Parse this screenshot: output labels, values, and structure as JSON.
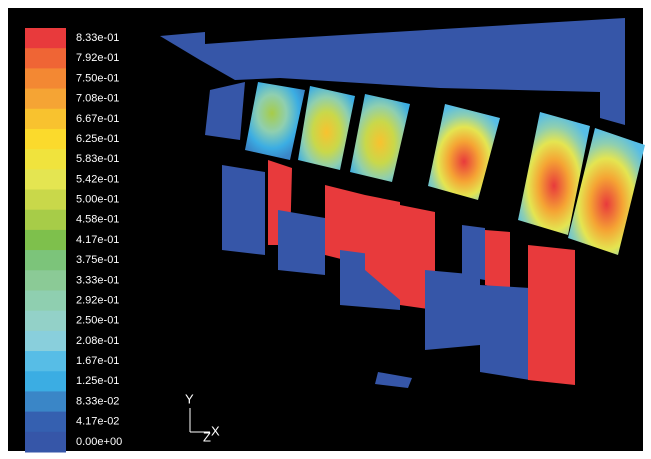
{
  "legend": {
    "levels": [
      {
        "label": "8.33e-01",
        "color": "#e83a3c"
      },
      {
        "label": "7.92e-01",
        "color": "#ef6535"
      },
      {
        "label": "7.50e-01",
        "color": "#f38833"
      },
      {
        "label": "7.08e-01",
        "color": "#f5a434"
      },
      {
        "label": "6.67e-01",
        "color": "#f8c22f"
      },
      {
        "label": "6.25e-01",
        "color": "#fbda2c"
      },
      {
        "label": "5.83e-01",
        "color": "#f0e33d"
      },
      {
        "label": "5.42e-01",
        "color": "#e4e551"
      },
      {
        "label": "5.00e-01",
        "color": "#c9d84a"
      },
      {
        "label": "4.58e-01",
        "color": "#a7cc48"
      },
      {
        "label": "4.17e-01",
        "color": "#7ec04c"
      },
      {
        "label": "3.75e-01",
        "color": "#7cc47a"
      },
      {
        "label": "3.33e-01",
        "color": "#8bca96"
      },
      {
        "label": "2.92e-01",
        "color": "#8fcfb0"
      },
      {
        "label": "2.50e-01",
        "color": "#93d1c8"
      },
      {
        "label": "2.08e-01",
        "color": "#89cfdc"
      },
      {
        "label": "1.67e-01",
        "color": "#57bde6"
      },
      {
        "label": "1.25e-01",
        "color": "#3badE3"
      },
      {
        "label": "8.33e-02",
        "color": "#3a86c7"
      },
      {
        "label": "4.17e-02",
        "color": "#3560b0"
      },
      {
        "label": "0.00e+00",
        "color": "#3656a8"
      }
    ]
  },
  "axes": {
    "y": "Y",
    "z": "Z",
    "x": "X"
  }
}
